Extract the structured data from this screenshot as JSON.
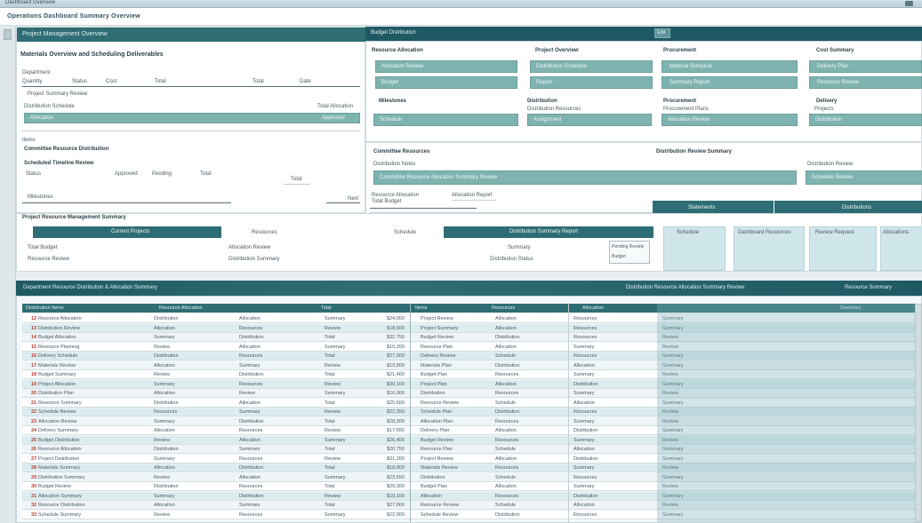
{
  "window": {
    "title": "Dashboard Overview"
  },
  "menubar": {
    "title": "Operations Dashboard Summary Overview"
  },
  "top_panel": {
    "header": "Project Management Overview"
  },
  "left_form": {
    "heading": "Materials Overview and Scheduling Deliverables",
    "label1": "Department",
    "cols": [
      "Quantity",
      "Status",
      "Cost",
      "Total",
      "Date"
    ],
    "label2": "Project Summary Review",
    "label3": "Distribution Schedule",
    "label3_right": "Total Allocation",
    "bar1_text": "Allocation",
    "bar1_right": "Approved",
    "label4": "Items",
    "label5": "Committee Resource Distribution",
    "label6": "Scheduled Timeline Review",
    "sub": [
      "Status",
      "Approved",
      "Pending",
      "Total"
    ],
    "label7": "Milestones",
    "label7_right": "Next",
    "label8": "Project Resource Management Summary"
  },
  "mid_header": {
    "text": "Budget Distribution",
    "badge": "Edit"
  },
  "cards": [
    {
      "title": "Resource Allocation",
      "fields": [
        "Allocation Review",
        "Budget"
      ]
    },
    {
      "title": "Project Overview",
      "fields": [
        "Distribution Schedule",
        "Report"
      ]
    },
    {
      "title": "Procurement",
      "fields": [
        "Material Schedule",
        "Summary Report"
      ]
    },
    {
      "title": "Cost Summary",
      "fields": [
        "Delivery Plan",
        "Resource Review"
      ]
    }
  ],
  "cards2": [
    {
      "title": "Milestones",
      "fields": [
        "Schedule"
      ]
    },
    {
      "title": "Distribution",
      "sub": "Distribution Resources",
      "fields": [
        "Assignment"
      ]
    },
    {
      "title": "Procurement",
      "sub": "Procurement Plans",
      "fields": [
        "Allocation Review"
      ]
    },
    {
      "title": "Delivery",
      "sub": "Projects",
      "fields": [
        "Distribution"
      ]
    }
  ],
  "section2": {
    "title": "Committee Resources",
    "sub": "Distribution Notes",
    "bar": "Committee Resource Allocation Summary Review",
    "right_title": "Distribution Review Summary",
    "right_sub": "Distribution Review",
    "right_bar": "Schedule Review",
    "notes": [
      "Resource Allocation",
      "Total Budget"
    ],
    "note_right": "Allocation Report"
  },
  "tabs": {
    "tab1": "Statements",
    "tab2": "Distributions"
  },
  "strip": {
    "label": "Project Resource Management Summary",
    "tabs": [
      "Current Projects",
      "Resources",
      "Distribution Summary Report",
      "Schedule",
      "Dashboard Resources",
      "Review Request",
      "Allocations"
    ],
    "row1": [
      "Total Budget",
      "Allocation Review",
      "Pending Review",
      "Summary"
    ],
    "row2": [
      "Resource Review",
      "Distribution Summary",
      "Distribution Status",
      "Budget"
    ]
  },
  "table_header": {
    "left": "Department Resource Distribution & Allocation Summary",
    "right": "Distribution Resource Allocation Summary Review",
    "far": "Resource Summary"
  },
  "table": {
    "cols_left": [
      "Distribution Items",
      "Resource Allocation",
      "Total"
    ],
    "cols_right": [
      "Items",
      "Resources",
      "Allocation",
      "Summary"
    ],
    "rows": [
      [
        "12",
        "Resource Allocation",
        "Distribution",
        "Allocation",
        "Summary",
        "$24,000",
        "Project Review",
        "Allocation",
        "Resources",
        "Summary"
      ],
      [
        "13",
        "Distribution Review",
        "Allocation",
        "Resources",
        "Review",
        "$18,500",
        "Project Summary",
        "Allocation",
        "Resources",
        "Summary"
      ],
      [
        "14",
        "Budget Allocation",
        "Summary",
        "Distribution",
        "Total",
        "$32,750",
        "Budget Review",
        "Distribution",
        "Resources",
        "Review"
      ],
      [
        "15",
        "Resource Planning",
        "Review",
        "Allocation",
        "Summary",
        "$15,200",
        "Resource Plan",
        "Allocation",
        "Summary",
        "Review"
      ],
      [
        "16",
        "Delivery Schedule",
        "Distribution",
        "Resources",
        "Total",
        "$27,300",
        "Delivery Review",
        "Schedule",
        "Resources",
        "Summary"
      ],
      [
        "17",
        "Materials Review",
        "Allocation",
        "Summary",
        "Review",
        "$19,800",
        "Materials Plan",
        "Distribution",
        "Allocation",
        "Summary"
      ],
      [
        "18",
        "Budget Summary",
        "Review",
        "Distribution",
        "Total",
        "$21,400",
        "Budget Plan",
        "Resources",
        "Summary",
        "Review"
      ],
      [
        "19",
        "Project Allocation",
        "Summary",
        "Resources",
        "Review",
        "$30,100",
        "Project Plan",
        "Allocation",
        "Distribution",
        "Summary"
      ],
      [
        "20",
        "Distribution Plan",
        "Allocation",
        "Review",
        "Summary",
        "$16,900",
        "Distribution",
        "Resources",
        "Summary",
        "Review"
      ],
      [
        "21",
        "Resource Summary",
        "Distribution",
        "Allocation",
        "Total",
        "$25,600",
        "Resource Review",
        "Schedule",
        "Allocation",
        "Summary"
      ],
      [
        "22",
        "Schedule Review",
        "Resources",
        "Summary",
        "Review",
        "$22,350",
        "Schedule Plan",
        "Distribution",
        "Resources",
        "Review"
      ],
      [
        "23",
        "Allocation Review",
        "Summary",
        "Distribution",
        "Total",
        "$28,900",
        "Allocation Plan",
        "Resources",
        "Summary",
        "Review"
      ],
      [
        "24",
        "Delivery Summary",
        "Allocation",
        "Resources",
        "Review",
        "$17,650",
        "Delivery Plan",
        "Allocation",
        "Distribution",
        "Summary"
      ],
      [
        "25",
        "Budget Distribution",
        "Review",
        "Allocation",
        "Summary",
        "$26,400",
        "Budget Review",
        "Resources",
        "Summary",
        "Review"
      ],
      [
        "26",
        "Resource Allocation",
        "Distribution",
        "Summary",
        "Total",
        "$20,750",
        "Resource Plan",
        "Schedule",
        "Allocation",
        "Summary"
      ],
      [
        "27",
        "Project Distribution",
        "Summary",
        "Resources",
        "Review",
        "$31,200",
        "Project Review",
        "Allocation",
        "Distribution",
        "Summary"
      ],
      [
        "28",
        "Materials Summary",
        "Allocation",
        "Distribution",
        "Total",
        "$18,900",
        "Materials Review",
        "Resources",
        "Summary",
        "Review"
      ],
      [
        "29",
        "Distribution Summary",
        "Review",
        "Allocation",
        "Summary",
        "$23,550",
        "Distribution",
        "Schedule",
        "Resources",
        "Summary"
      ],
      [
        "30",
        "Budget Review",
        "Distribution",
        "Resources",
        "Total",
        "$29,300",
        "Budget Plan",
        "Allocation",
        "Summary",
        "Review"
      ],
      [
        "31",
        "Allocation Summary",
        "Summary",
        "Distribution",
        "Review",
        "$19,100",
        "Allocation",
        "Resources",
        "Distribution",
        "Summary"
      ],
      [
        "32",
        "Resource Distribution",
        "Allocation",
        "Summary",
        "Total",
        "$27,800",
        "Resource Review",
        "Schedule",
        "Allocation",
        "Review"
      ],
      [
        "33",
        "Schedule Summary",
        "Review",
        "Resources",
        "Summary",
        "$22,900",
        "Schedule Review",
        "Distribution",
        "Resources",
        "Summary"
      ]
    ]
  }
}
